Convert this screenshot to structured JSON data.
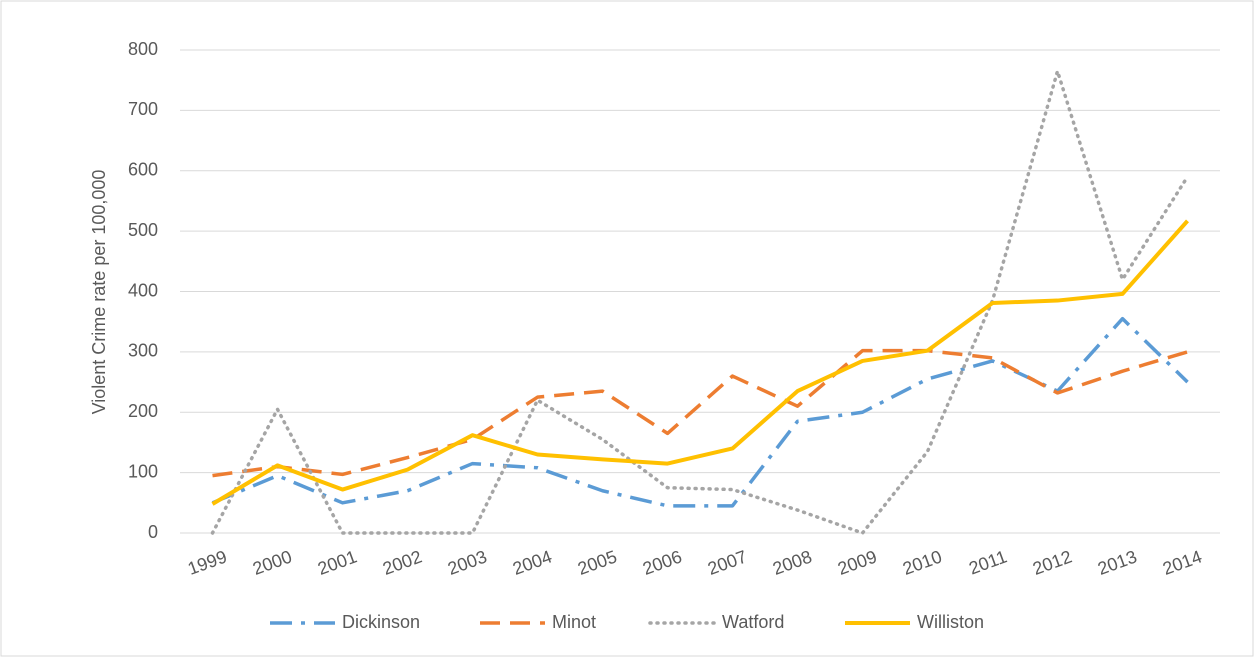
{
  "chart_data": {
    "type": "line",
    "y_label": "Violent Crime rate per 100,000",
    "categories": [
      "1999",
      "2000",
      "2001",
      "2002",
      "2003",
      "2004",
      "2005",
      "2006",
      "2007",
      "2008",
      "2009",
      "2010",
      "2011",
      "2012",
      "2013",
      "2014"
    ],
    "series": [
      {
        "name": "Dickinson",
        "color": "#5b9bd5",
        "dash": "22 9 4 9",
        "values": [
          50,
          95,
          50,
          70,
          115,
          108,
          70,
          45,
          45,
          185,
          200,
          255,
          285,
          235,
          355,
          250
        ]
      },
      {
        "name": "Minot",
        "color": "#ed7d31",
        "dash": "20 10",
        "values": [
          95,
          110,
          97,
          125,
          155,
          225,
          235,
          165,
          260,
          210,
          302,
          302,
          290,
          232,
          268,
          300
        ]
      },
      {
        "name": "Watford",
        "color": "#a5a5a5",
        "dash": "1 6",
        "values": [
          0,
          205,
          0,
          0,
          0,
          220,
          155,
          75,
          72,
          38,
          0,
          135,
          385,
          765,
          420,
          590
        ]
      },
      {
        "name": "Williston",
        "color": "#ffc000",
        "dash": "none",
        "values": [
          48,
          112,
          72,
          105,
          162,
          130,
          122,
          115,
          140,
          235,
          285,
          302,
          381,
          385,
          396,
          517
        ]
      }
    ],
    "ylim": [
      0,
      800
    ],
    "yticks": [
      0,
      100,
      200,
      300,
      400,
      500,
      600,
      700,
      800
    ],
    "grid": true,
    "legend": "bottom"
  }
}
